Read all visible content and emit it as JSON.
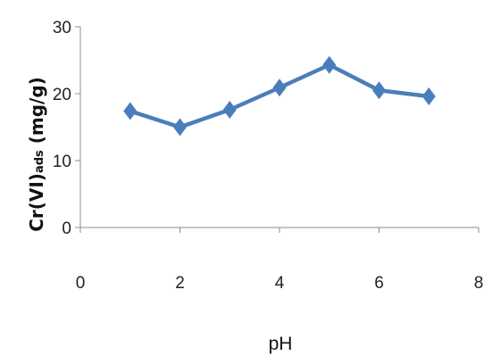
{
  "chart_data": {
    "type": "line",
    "title": "",
    "xlabel": "pH",
    "ylabel": {
      "prefix": "Cr(VI)",
      "subscript": "ads",
      "suffix": " (mg/g)"
    },
    "xlim": [
      0,
      8
    ],
    "ylim": [
      0,
      30
    ],
    "xticks": [
      "0",
      "2",
      "4",
      "6",
      "8"
    ],
    "yticks": [
      "0",
      "10",
      "20",
      "30"
    ],
    "grid": false,
    "legend": "none",
    "series": [
      {
        "x": [
          1,
          2,
          3,
          4,
          5,
          6,
          7
        ],
        "y": [
          17.4,
          15.0,
          17.6,
          20.9,
          24.3,
          20.5,
          19.6
        ],
        "color": "#4a7ebb",
        "marker": "diamond"
      }
    ]
  }
}
